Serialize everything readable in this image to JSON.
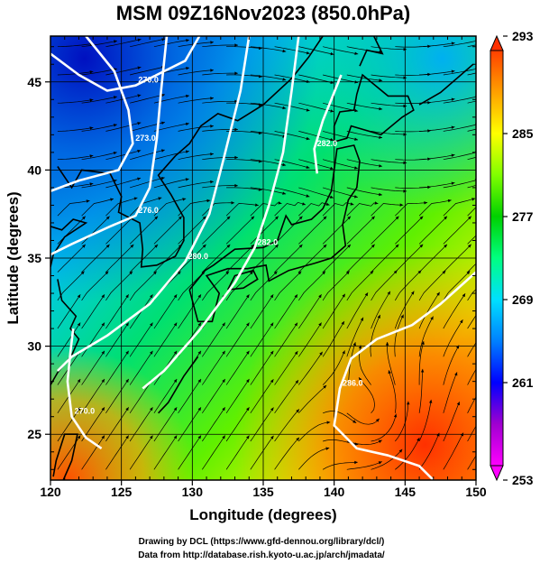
{
  "title": "MSM 09Z16Nov2023 (850.0hPa)",
  "xlabel": "Longitude (degrees)",
  "ylabel": "Latitude  (degrees)",
  "credits": [
    "Drawing by DCL (https://www.gfd-dennou.org/library/dcl/)",
    "Data from http://database.rish.kyoto-u.ac.jp/arch/jmadata/"
  ],
  "colors": {
    "coast": "#000000",
    "contour": "#ffffff",
    "streamline": "#000000"
  },
  "chart_data": {
    "type": "heatmap",
    "variable": "temperature",
    "xlim": [
      120,
      150
    ],
    "ylim": [
      22.4,
      47.6
    ],
    "xticks": [
      120,
      125,
      130,
      135,
      140,
      145,
      150
    ],
    "yticks": [
      25,
      30,
      35,
      40,
      45
    ],
    "colorbar": {
      "min": 253,
      "max": 293,
      "ticks": [
        253,
        261,
        269,
        277,
        285,
        293
      ],
      "colors": [
        "#ff00ff",
        "#a000d0",
        "#0000ff",
        "#0080ff",
        "#00e0ff",
        "#00ff80",
        "#00d000",
        "#80ff00",
        "#ffff00",
        "#ffa000",
        "#ff4000"
      ]
    },
    "contours": [
      {
        "label": "270.0",
        "points": [
          [
            120,
            46.6
          ],
          [
            122,
            45.4
          ],
          [
            124,
            44.5
          ],
          [
            126,
            44.8
          ],
          [
            128,
            45.6
          ],
          [
            129.5,
            46.2
          ],
          [
            130.5,
            47.6
          ]
        ]
      },
      {
        "label": "270.0",
        "points": [
          [
            121.6,
            31.0
          ],
          [
            121.4,
            29.6
          ],
          [
            121.2,
            28.0
          ],
          [
            121.5,
            26.0
          ],
          [
            122.5,
            24.8
          ],
          [
            123.6,
            24.2
          ]
        ]
      },
      {
        "label": "273.0",
        "points": [
          [
            122.5,
            47.6
          ],
          [
            124.5,
            45.6
          ],
          [
            125.5,
            43.4
          ],
          [
            125.8,
            41.5
          ],
          [
            124.8,
            40.0
          ],
          [
            122.0,
            39.4
          ],
          [
            120,
            38.8
          ]
        ]
      },
      {
        "label": "276.0",
        "points": [
          [
            128.2,
            47.6
          ],
          [
            127.8,
            44.5
          ],
          [
            127.5,
            41.8
          ],
          [
            127.0,
            39.0
          ],
          [
            126.0,
            37.4
          ],
          [
            124.2,
            36.8
          ],
          [
            121.5,
            35.8
          ],
          [
            120,
            35.2
          ]
        ]
      },
      {
        "label": "280.0",
        "points": [
          [
            134.0,
            47.6
          ],
          [
            133.4,
            44.5
          ],
          [
            132.2,
            40.6
          ],
          [
            131.2,
            37.5
          ],
          [
            129.5,
            34.8
          ],
          [
            127.0,
            32.4
          ],
          [
            124.0,
            30.6
          ],
          [
            121.5,
            29.4
          ],
          [
            120.5,
            28.6
          ]
        ]
      },
      {
        "label": "282.0",
        "points": [
          [
            137.5,
            47.6
          ],
          [
            137.0,
            44.5
          ],
          [
            136.4,
            41.0
          ],
          [
            135.4,
            38.0
          ],
          [
            134.4,
            35.6
          ],
          [
            133.0,
            33.6
          ],
          [
            130.5,
            30.9
          ],
          [
            128.0,
            28.6
          ],
          [
            126.5,
            27.6
          ]
        ]
      },
      {
        "label": "282.0",
        "points": [
          [
            140.5,
            45.4
          ],
          [
            139.2,
            42.8
          ],
          [
            138.6,
            41.2
          ],
          [
            138.8,
            39.8
          ]
        ]
      },
      {
        "label": "286.0",
        "points": [
          [
            150,
            34.2
          ],
          [
            147.5,
            32.4
          ],
          [
            145.5,
            31.2
          ],
          [
            143.0,
            30.4
          ],
          [
            141.2,
            29.3
          ],
          [
            140.4,
            27.6
          ],
          [
            140.0,
            25.5
          ],
          [
            141.6,
            24.2
          ],
          [
            143.8,
            23.8
          ],
          [
            146.0,
            23.2
          ],
          [
            147.0,
            22.4
          ]
        ]
      }
    ],
    "temperature_field": "rendered as smooth color field, values estimated"
  }
}
